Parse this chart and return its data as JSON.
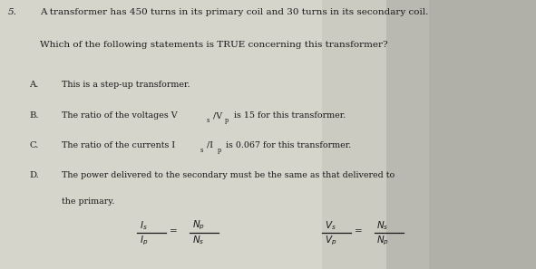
{
  "bg_color": "#c8c8c0",
  "text_color": "#1a1a1a",
  "fig_width": 5.91,
  "fig_height": 2.97,
  "q_num": "5.",
  "line1": "A transformer has 450 turns in its primary coil and 30 turns in its secondary coil.",
  "line2": "Which of the following statements is TRUE concerning this transformer?",
  "opt_A_lbl": "A.",
  "opt_A_txt": "This is a step-up transformer.",
  "opt_B_lbl": "B.",
  "opt_B_txt": "The ratio of the voltages V",
  "opt_B_sub1": "s",
  "opt_B_sep": "/V",
  "opt_B_sub2": "p",
  "opt_B_end": " is 15 for this transformer.",
  "opt_C_lbl": "C.",
  "opt_C_txt": "The ratio of the currents I",
  "opt_C_sub1": "s",
  "opt_C_sep": "/I",
  "opt_C_sub2": "p",
  "opt_C_end": " is 0.067 for this transformer.",
  "opt_D_lbl": "D.",
  "opt_D_txt": "The power delivered to the secondary must be the same as that delivered to",
  "opt_D_txt2": "the primary.",
  "fs_title": 7.5,
  "fs_label": 7.2,
  "fs_option": 6.8,
  "fs_formula": 7.5
}
